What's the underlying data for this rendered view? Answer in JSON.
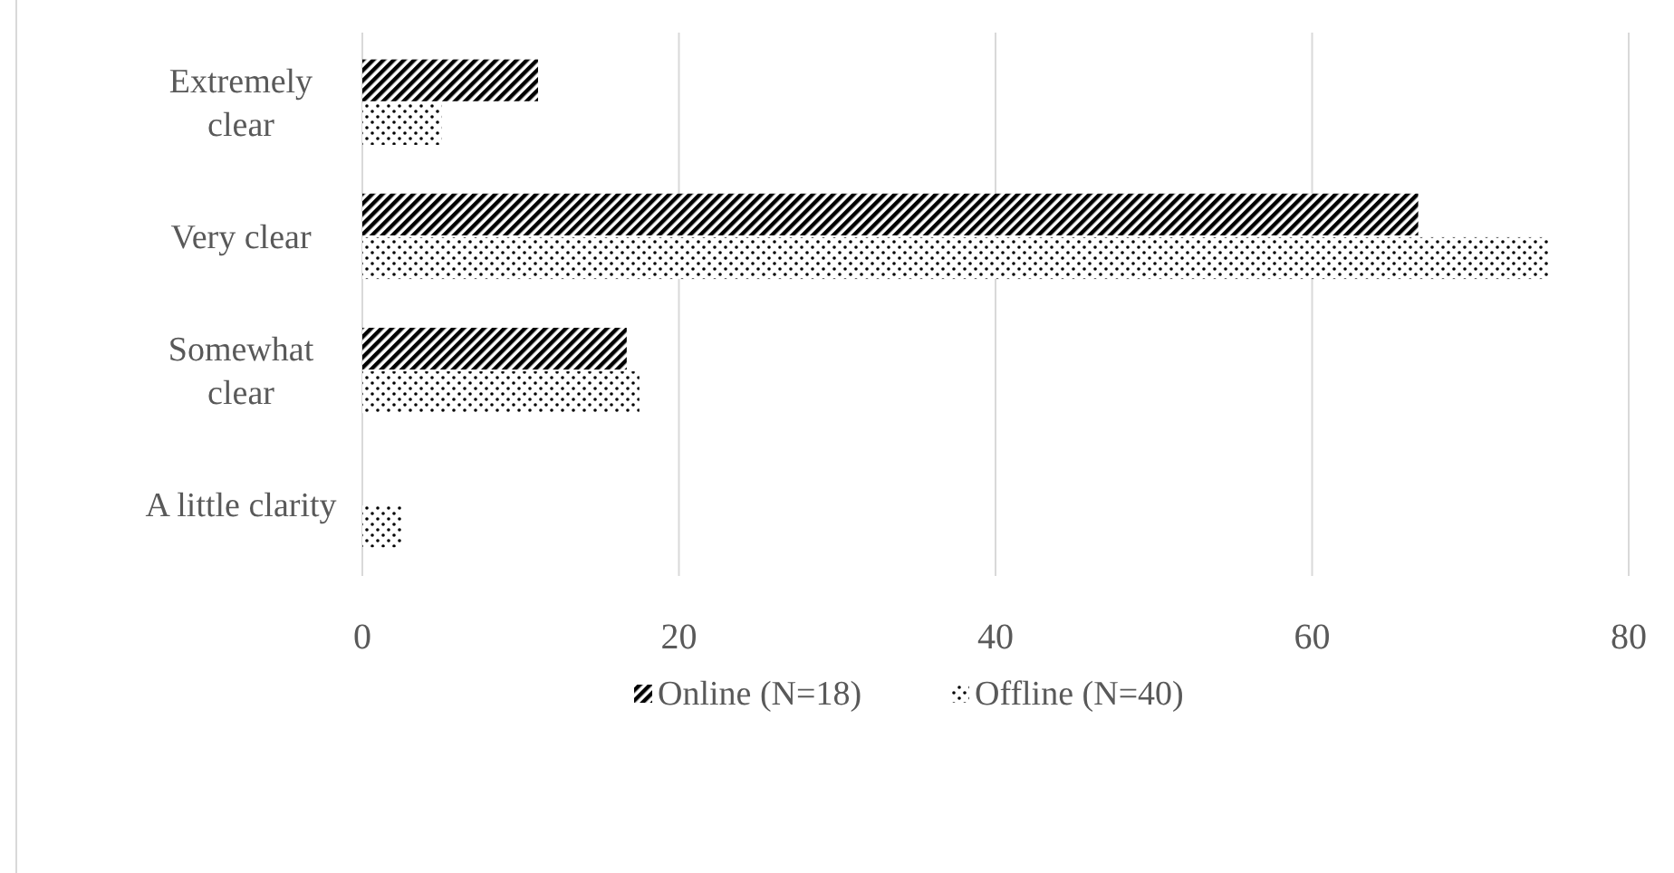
{
  "chart_data": {
    "type": "bar",
    "orientation": "horizontal",
    "categories": [
      "Extremely\nclear",
      "Very clear",
      "Somewhat\nclear",
      "A little clarity"
    ],
    "series": [
      {
        "name": "Online (N=18)",
        "color": "#000000",
        "values": [
          11.1,
          66.7,
          16.7,
          0
        ]
      },
      {
        "name": "Offline (N=40)",
        "color": "#000000",
        "values": [
          5,
          75,
          17.5,
          2.5
        ]
      }
    ],
    "xlim": [
      0,
      80
    ],
    "xticks": [
      0,
      20,
      40,
      60,
      80
    ],
    "grid": "x",
    "legend": "bottom"
  }
}
